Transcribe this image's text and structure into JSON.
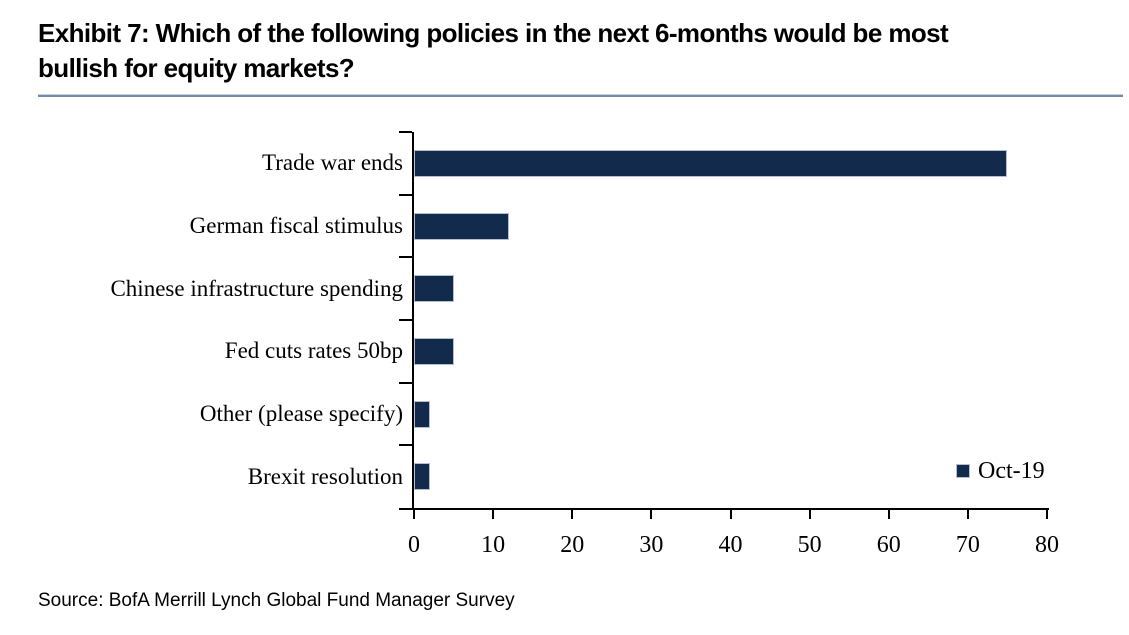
{
  "title": "Exhibit 7: Which of the following policies in the next 6-months would be most\nbullish for equity markets?",
  "source": "Source: BofA Merrill Lynch Global Fund Manager Survey",
  "legend": {
    "label": "Oct-19"
  },
  "colors": {
    "bar_fill": "#122B4D",
    "bar_border": "#B6BDCF",
    "axis": "#000000",
    "title_rule_dark": "#7289B5",
    "title_rule_light": "#C6CFE2"
  },
  "chart_data": {
    "type": "bar",
    "orientation": "horizontal",
    "title": "Which of the following policies in the next 6-months would be most bullish for equity markets?",
    "categories": [
      "Trade war ends",
      "German fiscal stimulus",
      "Chinese infrastructure spending",
      "Fed cuts rates 50bp",
      "Other (please specify)",
      "Brexit resolution"
    ],
    "series": [
      {
        "name": "Oct-19",
        "values": [
          75,
          12,
          5,
          5,
          2,
          2
        ]
      }
    ],
    "xlim": [
      0,
      80
    ],
    "x_ticks": [
      0,
      10,
      20,
      30,
      40,
      50,
      60,
      70,
      80
    ],
    "grid": false,
    "legend_position": "inside-bottom-right"
  }
}
